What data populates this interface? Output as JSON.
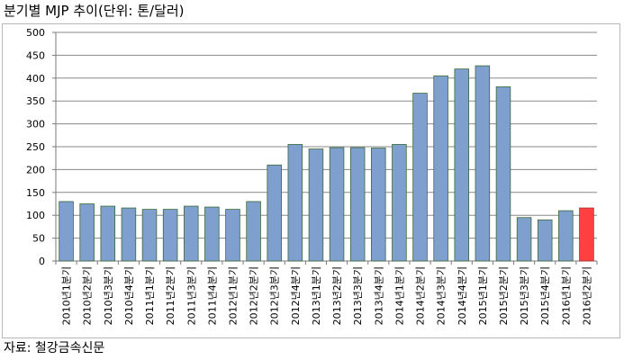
{
  "title": "분기별 MJP 추이(단위: 톤/달러)",
  "source": "자료: 철강금속신문",
  "chart_data": {
    "type": "bar",
    "title": "분기별 MJP 추이(단위: 톤/달러)",
    "xlabel": "",
    "ylabel": "",
    "ylim": [
      0,
      500
    ],
    "yticks": [
      0,
      50,
      100,
      150,
      200,
      250,
      300,
      350,
      400,
      450,
      500
    ],
    "grid": true,
    "legend": "none",
    "categories": [
      "2010년1분기",
      "2010년2분기",
      "2010년3분기",
      "2010년4분기",
      "2011년1분기",
      "2011년2분기",
      "2011년3분기",
      "2011년4분기",
      "2012년1분기",
      "2012년2분기",
      "2012년3분기",
      "2012년4분기",
      "2013년1분기",
      "2013년2분기",
      "2013년3분기",
      "2013년4분기",
      "2014년1분기",
      "2014년2분기",
      "2014년3분기",
      "2014년4분기",
      "2015년1분기",
      "2015년2분기",
      "2015년3분기",
      "2015년4분기",
      "2016년1분기",
      "2016년2분기"
    ],
    "values": [
      130,
      125,
      120,
      116,
      113,
      113,
      120,
      118,
      113,
      130,
      210,
      255,
      245,
      248,
      248,
      247,
      255,
      367,
      405,
      420,
      427,
      381,
      95,
      90,
      110,
      116
    ],
    "colors": {
      "bar": "#7f9fcf",
      "bar_edge": "#3a6a3a",
      "highlight": "#ff4040",
      "highlight_edge": "#a03030",
      "grid": "#8a8a8a"
    },
    "highlight_index": 25
  }
}
